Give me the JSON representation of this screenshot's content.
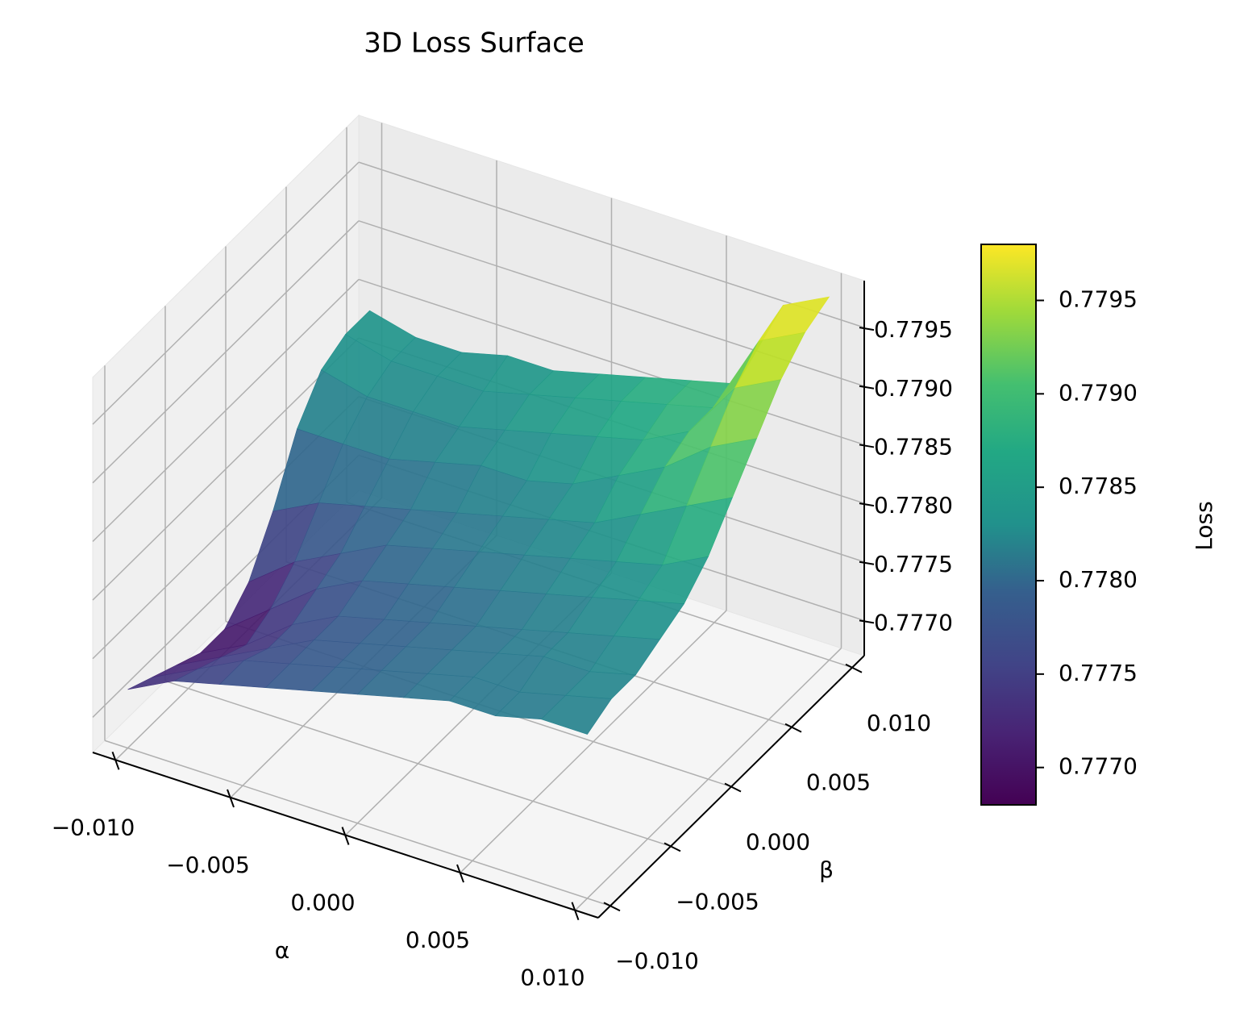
{
  "chart_data": {
    "type": "surface",
    "title": "3D Loss Surface",
    "x_label": "α",
    "y_label": "β",
    "z_label": "Loss",
    "colorbar_label": "Loss",
    "colormap": "viridis",
    "x": [
      -0.01,
      -0.008,
      -0.006,
      -0.004,
      -0.002,
      0,
      0.002,
      0.004,
      0.006,
      0.008,
      0.01
    ],
    "y": [
      -0.01,
      -0.008,
      -0.006,
      -0.004,
      -0.002,
      0,
      0.002,
      0.004,
      0.006,
      0.008,
      0.01
    ],
    "z": [
      [
        0.7772,
        0.7774,
        0.7775,
        0.7776,
        0.7777,
        0.7778,
        0.7779,
        0.778,
        0.778,
        0.7781,
        0.7781
      ],
      [
        0.7771,
        0.7773,
        0.7775,
        0.7776,
        0.7777,
        0.7778,
        0.7779,
        0.778,
        0.778,
        0.7781,
        0.7782
      ],
      [
        0.777,
        0.7772,
        0.7774,
        0.7776,
        0.7777,
        0.7778,
        0.7779,
        0.778,
        0.7781,
        0.7781,
        0.7782
      ],
      [
        0.7769,
        0.7771,
        0.7774,
        0.7776,
        0.7777,
        0.7778,
        0.7779,
        0.778,
        0.7781,
        0.7782,
        0.7783
      ],
      [
        0.7769,
        0.7772,
        0.7775,
        0.7777,
        0.7778,
        0.7779,
        0.778,
        0.7781,
        0.7782,
        0.7783,
        0.7784
      ],
      [
        0.7771,
        0.7774,
        0.7776,
        0.7778,
        0.7779,
        0.778,
        0.7781,
        0.7782,
        0.7783,
        0.7784,
        0.7786
      ],
      [
        0.7775,
        0.7777,
        0.7778,
        0.7779,
        0.778,
        0.7781,
        0.7782,
        0.7783,
        0.7785,
        0.7787,
        0.7789
      ],
      [
        0.778,
        0.778,
        0.778,
        0.7781,
        0.7782,
        0.7782,
        0.7783,
        0.7785,
        0.7787,
        0.779,
        0.7792
      ],
      [
        0.7783,
        0.7782,
        0.7782,
        0.7782,
        0.7783,
        0.7784,
        0.7785,
        0.7786,
        0.7788,
        0.7793,
        0.7795
      ],
      [
        0.7784,
        0.7783,
        0.7783,
        0.7783,
        0.7784,
        0.7785,
        0.7786,
        0.7787,
        0.7788,
        0.7795,
        0.7797
      ],
      [
        0.7784,
        0.7783,
        0.7783,
        0.7784,
        0.7784,
        0.7785,
        0.7786,
        0.7787,
        0.7788,
        0.7796,
        0.7798
      ]
    ],
    "xlim": [
      -0.011,
      0.011
    ],
    "ylim": [
      -0.011,
      0.011
    ],
    "zlim": [
      0.7767,
      0.7799
    ],
    "clim": [
      0.7768,
      0.7798
    ],
    "xticks": [
      {
        "value": -0.01,
        "label": "−0.010"
      },
      {
        "value": -0.005,
        "label": "−0.005"
      },
      {
        "value": 0,
        "label": "0.000"
      },
      {
        "value": 0.005,
        "label": "0.005"
      },
      {
        "value": 0.01,
        "label": "0.010"
      }
    ],
    "yticks": [
      {
        "value": -0.01,
        "label": "−0.010"
      },
      {
        "value": -0.005,
        "label": "−0.005"
      },
      {
        "value": 0,
        "label": "0.000"
      },
      {
        "value": 0.005,
        "label": "0.005"
      },
      {
        "value": 0.01,
        "label": "0.010"
      }
    ],
    "zticks": [
      {
        "value": 0.777,
        "label": "0.7770"
      },
      0.7775,
      {
        "value": 0.778,
        "label": "0.7780"
      },
      0.7785,
      {
        "value": 0.779,
        "label": "0.7790"
      },
      0.7795
    ],
    "cticks": [
      {
        "value": 0.777,
        "label": "0.7770"
      },
      0.7775,
      {
        "value": 0.778,
        "label": "0.7780"
      },
      0.7785,
      {
        "value": 0.779,
        "label": "0.7790"
      },
      0.7795
    ],
    "grid": true
  }
}
